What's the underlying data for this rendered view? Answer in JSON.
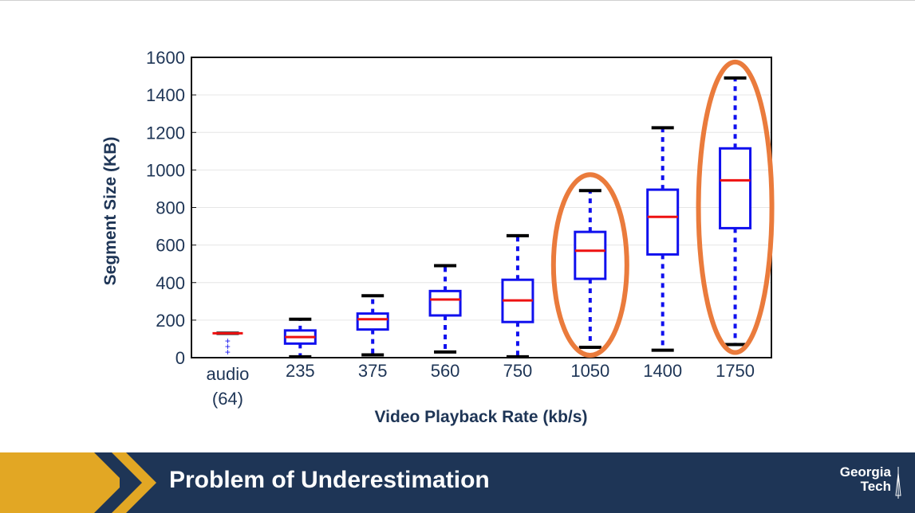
{
  "chart_data": {
    "type": "box",
    "xlabel": "Video Playback Rate (kb/s)",
    "ylabel": "Segment Size (KB)",
    "ylim": [
      0,
      1600
    ],
    "yticks": [
      0,
      200,
      400,
      600,
      800,
      1000,
      1200,
      1400,
      1600
    ],
    "categories": [
      {
        "label": "audio",
        "sublabel": "(64)"
      },
      {
        "label": "235"
      },
      {
        "label": "375"
      },
      {
        "label": "560"
      },
      {
        "label": "750"
      },
      {
        "label": "1050"
      },
      {
        "label": "1400"
      },
      {
        "label": "1750"
      }
    ],
    "boxes": [
      {
        "category": "audio",
        "whisker_low": 130,
        "q1": 130,
        "median": 130,
        "q3": 130,
        "whisker_high": 130,
        "outliers": [
          30,
          60,
          90
        ]
      },
      {
        "category": "235",
        "whisker_low": 5,
        "q1": 75,
        "median": 110,
        "q3": 145,
        "whisker_high": 205
      },
      {
        "category": "375",
        "whisker_low": 15,
        "q1": 150,
        "median": 205,
        "q3": 235,
        "whisker_high": 330
      },
      {
        "category": "560",
        "whisker_low": 30,
        "q1": 225,
        "median": 310,
        "q3": 355,
        "whisker_high": 490
      },
      {
        "category": "750",
        "whisker_low": 5,
        "q1": 190,
        "median": 305,
        "q3": 415,
        "whisker_high": 650
      },
      {
        "category": "1050",
        "whisker_low": 55,
        "q1": 420,
        "median": 570,
        "q3": 670,
        "whisker_high": 890
      },
      {
        "category": "1400",
        "whisker_low": 40,
        "q1": 550,
        "median": 750,
        "q3": 895,
        "whisker_high": 1225
      },
      {
        "category": "1750",
        "whisker_low": 70,
        "q1": 690,
        "median": 945,
        "q3": 1115,
        "whisker_high": 1490
      }
    ],
    "highlighted": [
      "1050",
      "1750"
    ],
    "grid": true,
    "colors": {
      "box": "#1010ee",
      "median": "#ee1111",
      "whisker_cap": "#000000",
      "highlight": "#ea7b3c",
      "axis_text": "#1e3556"
    }
  },
  "footer": {
    "title": "Problem of Underestimation",
    "logo_line1": "Georgia",
    "logo_line2": "Tech",
    "colors": {
      "navy": "#1e3556",
      "gold": "#e2a724"
    }
  }
}
